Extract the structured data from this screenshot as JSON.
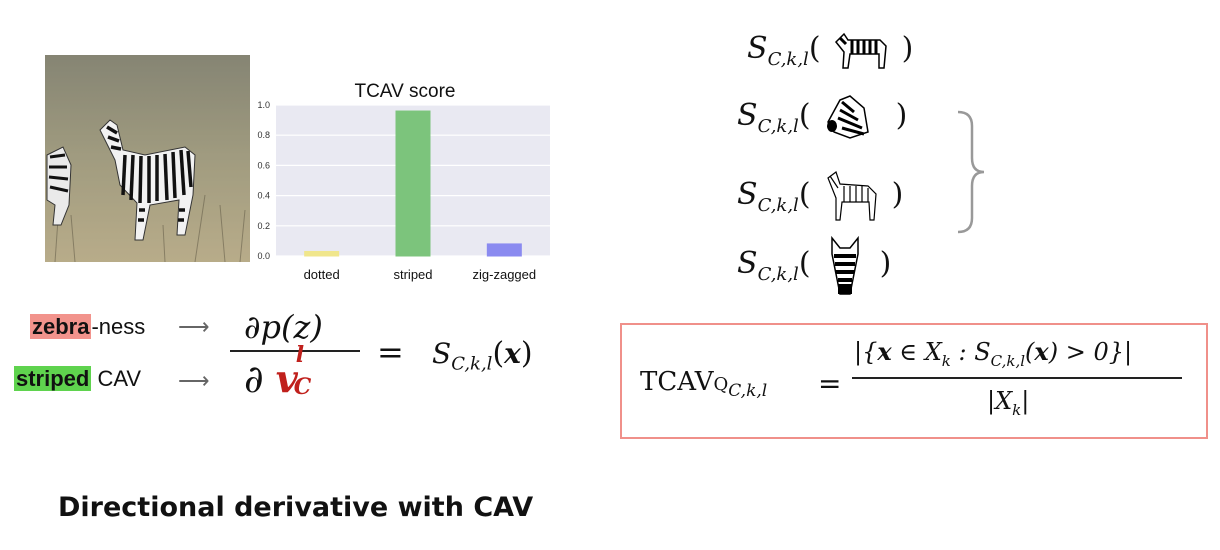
{
  "chart_data": {
    "type": "bar",
    "title": "TCAV score",
    "categories": [
      "dotted",
      "striped",
      "zig-zagged"
    ],
    "values": [
      0.03,
      0.96,
      0.08
    ],
    "colors": [
      "#f0e68c",
      "#7cc47c",
      "#8a8af0"
    ],
    "ylim": [
      0,
      1.0
    ],
    "yticks": [
      "0.0",
      "0.2",
      "0.4",
      "0.6",
      "0.8",
      "1.0"
    ],
    "grid": true,
    "xlabel": "",
    "ylabel": ""
  },
  "left_formula": {
    "zebra_word": "zebra",
    "zebra_suffix": "-ness",
    "striped_word": "striped",
    "striped_suffix": " CAV",
    "numerator": "∂p(z)",
    "equals": "="
  },
  "right_rows": {
    "s_symbol": "S"
  },
  "tcav_formula": {
    "lhs": "TCAV"
  },
  "heading": "Directional derivative with CAV",
  "colors": {
    "highlight_red": "#f2938c",
    "highlight_green": "#5fd34e",
    "box_border": "#f0908a"
  }
}
